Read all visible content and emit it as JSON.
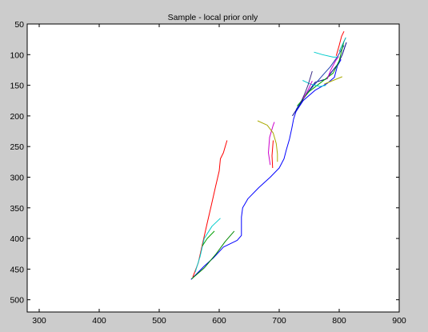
{
  "figure": {
    "background": "#cccccc"
  },
  "chart_data": {
    "type": "line",
    "title": "Sample - local prior only",
    "xlabel": "",
    "ylabel": "",
    "xlim": [
      280,
      900
    ],
    "ylim": [
      50,
      520
    ],
    "y_reversed": true,
    "grid": false,
    "x_ticks": [
      "300",
      "400",
      "500",
      "600",
      "700",
      "800",
      "900"
    ],
    "y_ticks": [
      "50",
      "100",
      "150",
      "200",
      "250",
      "300",
      "350",
      "400",
      "450",
      "500"
    ],
    "x_tick_values": [
      300,
      400,
      500,
      600,
      700,
      800,
      900
    ],
    "y_tick_values": [
      50,
      100,
      150,
      200,
      250,
      300,
      350,
      400,
      450,
      500
    ],
    "series": [
      {
        "color": "#0000ff",
        "points": [
          [
            553,
            467
          ],
          [
            575,
            445
          ],
          [
            590,
            432
          ],
          [
            607,
            414
          ],
          [
            630,
            403
          ],
          [
            637,
            395
          ],
          [
            637,
            385
          ],
          [
            637,
            365
          ],
          [
            639,
            350
          ],
          [
            648,
            335
          ],
          [
            666,
            317
          ],
          [
            685,
            300
          ],
          [
            700,
            285
          ],
          [
            708,
            270
          ],
          [
            712,
            255
          ],
          [
            717,
            238
          ],
          [
            721,
            220
          ],
          [
            724,
            205
          ],
          [
            728,
            193
          ],
          [
            740,
            175
          ],
          [
            760,
            158
          ],
          [
            780,
            147
          ],
          [
            792,
            137
          ],
          [
            797,
            118
          ],
          [
            803,
            108
          ]
        ]
      },
      {
        "color": "#ff0000",
        "points": [
          [
            556,
            463
          ],
          [
            565,
            440
          ],
          [
            573,
            405
          ],
          [
            580,
            375
          ],
          [
            587,
            345
          ],
          [
            594,
            315
          ],
          [
            600,
            290
          ],
          [
            602,
            270
          ],
          [
            607,
            260
          ],
          [
            610,
            250
          ],
          [
            613,
            240
          ]
        ]
      },
      {
        "color": "#00cccc",
        "points": [
          [
            560,
            455
          ],
          [
            568,
            430
          ],
          [
            575,
            400
          ],
          [
            588,
            380
          ],
          [
            602,
            367
          ]
        ]
      },
      {
        "color": "#008800",
        "points": [
          [
            554,
            466
          ],
          [
            575,
            448
          ],
          [
            595,
            425
          ],
          [
            610,
            405
          ],
          [
            625,
            388
          ]
        ]
      },
      {
        "color": "#00a000",
        "points": [
          [
            572,
            412
          ],
          [
            580,
            400
          ],
          [
            592,
            388
          ]
        ]
      },
      {
        "color": "#cc00cc",
        "points": [
          [
            685,
            280
          ],
          [
            682,
            260
          ],
          [
            684,
            235
          ],
          [
            690,
            215
          ],
          [
            692,
            210
          ]
        ]
      },
      {
        "color": "#ff0000",
        "points": [
          [
            689,
            285
          ],
          [
            688,
            265
          ],
          [
            690,
            240
          ]
        ]
      },
      {
        "color": "#aaaa00",
        "points": [
          [
            664,
            208
          ],
          [
            680,
            215
          ],
          [
            690,
            228
          ],
          [
            695,
            245
          ],
          [
            697,
            262
          ],
          [
            697,
            275
          ]
        ]
      },
      {
        "color": "#000088",
        "points": [
          [
            722,
            200
          ],
          [
            732,
            185
          ],
          [
            745,
            165
          ],
          [
            760,
            145
          ],
          [
            778,
            140
          ],
          [
            790,
            125
          ],
          [
            798,
            115
          ],
          [
            805,
            100
          ],
          [
            812,
            80
          ]
        ]
      },
      {
        "color": "#1f3fb0",
        "points": [
          [
            728,
            190
          ],
          [
            742,
            168
          ],
          [
            758,
            150
          ],
          [
            774,
            132
          ],
          [
            785,
            120
          ],
          [
            796,
            105
          ],
          [
            808,
            85
          ]
        ]
      },
      {
        "color": "#00a000",
        "points": [
          [
            730,
            184
          ],
          [
            750,
            160
          ],
          [
            770,
            145
          ],
          [
            790,
            130
          ],
          [
            800,
            110
          ],
          [
            808,
            78
          ]
        ]
      },
      {
        "color": "#00aaaa",
        "points": [
          [
            800,
            95
          ],
          [
            811,
            72
          ]
        ]
      },
      {
        "color": "#ff0000",
        "points": [
          [
            795,
            102
          ],
          [
            800,
            85
          ],
          [
            804,
            70
          ],
          [
            808,
            62
          ]
        ]
      },
      {
        "color": "#00cccc",
        "points": [
          [
            758,
            96
          ],
          [
            772,
            100
          ],
          [
            790,
            104
          ],
          [
            798,
            104
          ]
        ]
      },
      {
        "color": "#00cccc",
        "points": [
          [
            739,
            142
          ],
          [
            752,
            148
          ],
          [
            768,
            152
          ],
          [
            778,
            150
          ]
        ]
      },
      {
        "color": "#aaaa00",
        "points": [
          [
            775,
            148
          ],
          [
            790,
            142
          ],
          [
            805,
            136
          ]
        ]
      },
      {
        "color": "#cc00cc",
        "points": [
          [
            780,
            140
          ],
          [
            786,
            125
          ],
          [
            794,
            110
          ],
          [
            799,
            103
          ]
        ]
      },
      {
        "color": "#3b2c86",
        "points": [
          [
            736,
            178
          ],
          [
            742,
            165
          ],
          [
            748,
            150
          ],
          [
            755,
            127
          ]
        ]
      },
      {
        "color": "#cc00cc",
        "points": [
          [
            740,
            172
          ],
          [
            748,
            158
          ],
          [
            755,
            143
          ]
        ]
      }
    ]
  }
}
